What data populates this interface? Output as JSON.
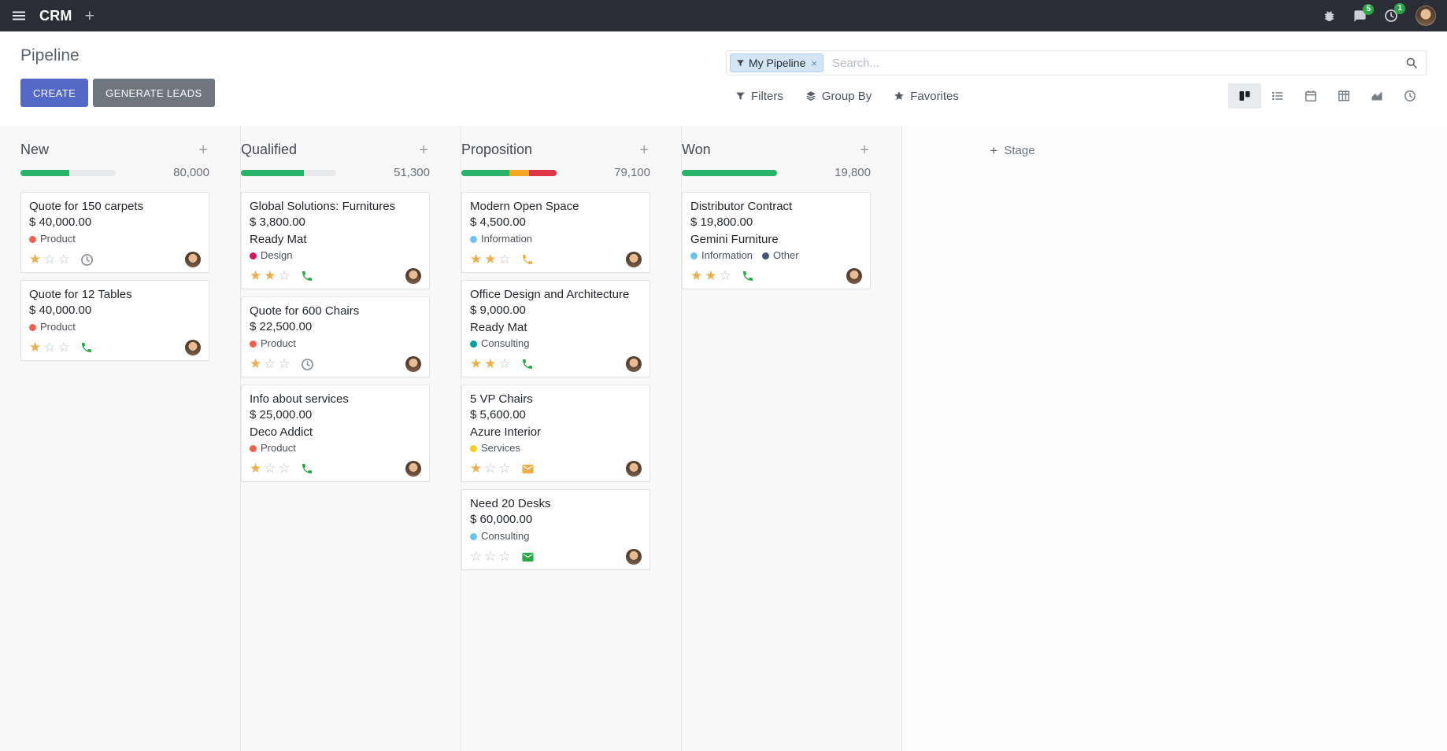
{
  "icons": {
    "plus": "+",
    "close": "×",
    "star_filled": "★",
    "star_empty": "☆"
  },
  "navbar": {
    "app_name": "CRM",
    "messages_badge": "5",
    "activities_badge": "1"
  },
  "control_panel": {
    "title": "Pipeline",
    "create_label": "CREATE",
    "generate_leads_label": "GENERATE LEADS",
    "search": {
      "facet_label": "My Pipeline",
      "placeholder": "Search..."
    },
    "filters_label": "Filters",
    "group_by_label": "Group By",
    "favorites_label": "Favorites"
  },
  "board": {
    "add_stage_label": "Stage",
    "columns": [
      {
        "title": "New",
        "total": "80,000",
        "progress": [
          {
            "color": "#28b468",
            "width": "51%"
          }
        ],
        "cards": [
          {
            "title": "Quote for 150 carpets",
            "amount": "$ 40,000.00",
            "tags": [
              {
                "label": "Product",
                "color": "#f06050"
              }
            ],
            "stars": 1,
            "activity": {
              "type": "clock",
              "color": "#8a9097"
            }
          },
          {
            "title": "Quote for 12 Tables",
            "amount": "$ 40,000.00",
            "tags": [
              {
                "label": "Product",
                "color": "#f06050"
              }
            ],
            "stars": 1,
            "activity": {
              "type": "phone",
              "color": "#28a745"
            }
          }
        ]
      },
      {
        "title": "Qualified",
        "total": "51,300",
        "progress": [
          {
            "color": "#28b468",
            "width": "66%"
          }
        ],
        "cards": [
          {
            "title": "Global Solutions: Furnitures",
            "amount": "$ 3,800.00",
            "partner": "Ready Mat",
            "tags": [
              {
                "label": "Design",
                "color": "#d6145f"
              }
            ],
            "stars": 2,
            "activity": {
              "type": "phone",
              "color": "#28a745"
            }
          },
          {
            "title": "Quote for 600 Chairs",
            "amount": "$ 22,500.00",
            "tags": [
              {
                "label": "Product",
                "color": "#f06050"
              }
            ],
            "stars": 1,
            "activity": {
              "type": "clock",
              "color": "#8a9097"
            }
          },
          {
            "title": "Info about services",
            "amount": "$ 25,000.00",
            "partner": "Deco Addict",
            "tags": [
              {
                "label": "Product",
                "color": "#f06050"
              }
            ],
            "stars": 1,
            "activity": {
              "type": "phone",
              "color": "#28a745"
            }
          }
        ]
      },
      {
        "title": "Proposition",
        "total": "79,100",
        "progress": [
          {
            "color": "#28b468",
            "width": "50%"
          },
          {
            "color": "#f5a623",
            "width": "21%"
          },
          {
            "color": "#dc3545",
            "width": "29%"
          }
        ],
        "cards": [
          {
            "title": "Modern Open Space",
            "amount": "$ 4,500.00",
            "tags": [
              {
                "label": "Information",
                "color": "#6cc1ed"
              }
            ],
            "stars": 2,
            "activity": {
              "type": "phone",
              "color": "#f0ad4e"
            }
          },
          {
            "title": "Office Design and Architecture",
            "amount": "$ 9,000.00",
            "partner": "Ready Mat",
            "tags": [
              {
                "label": "Consulting",
                "color": "#00a09d"
              }
            ],
            "stars": 2,
            "activity": {
              "type": "phone",
              "color": "#28a745"
            }
          },
          {
            "title": "5 VP Chairs",
            "amount": "$ 5,600.00",
            "partner": "Azure Interior",
            "tags": [
              {
                "label": "Services",
                "color": "#f7cd1f"
              }
            ],
            "stars": 1,
            "activity": {
              "type": "mail",
              "color": "#f0ad4e"
            }
          },
          {
            "title": "Need 20 Desks",
            "amount": "$ 60,000.00",
            "tags": [
              {
                "label": "Consulting",
                "color": "#6cc1ed"
              }
            ],
            "stars": 0,
            "activity": {
              "type": "mail",
              "color": "#28a745"
            }
          }
        ]
      },
      {
        "title": "Won",
        "total": "19,800",
        "progress": [
          {
            "color": "#28b468",
            "width": "100%"
          }
        ],
        "cards": [
          {
            "title": "Distributor Contract",
            "amount": "$ 19,800.00",
            "partner": "Gemini Furniture",
            "tags": [
              {
                "label": "Information",
                "color": "#6cc1ed"
              },
              {
                "label": "Other",
                "color": "#475577"
              }
            ],
            "stars": 2,
            "activity": {
              "type": "phone",
              "color": "#28a745"
            }
          }
        ]
      }
    ]
  }
}
